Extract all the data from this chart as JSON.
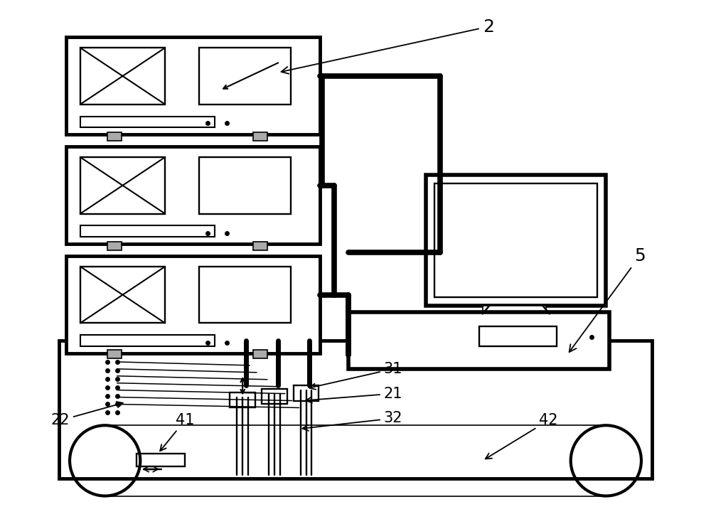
{
  "bg_color": "#ffffff",
  "line_color": "#000000",
  "thick_lw": 3.5,
  "thin_lw": 1.2,
  "label_2": "2",
  "label_5": "5",
  "label_22": "22",
  "label_31": "31",
  "label_21": "21",
  "label_32": "32",
  "label_41": "41",
  "label_42": "42",
  "font_size": 15
}
